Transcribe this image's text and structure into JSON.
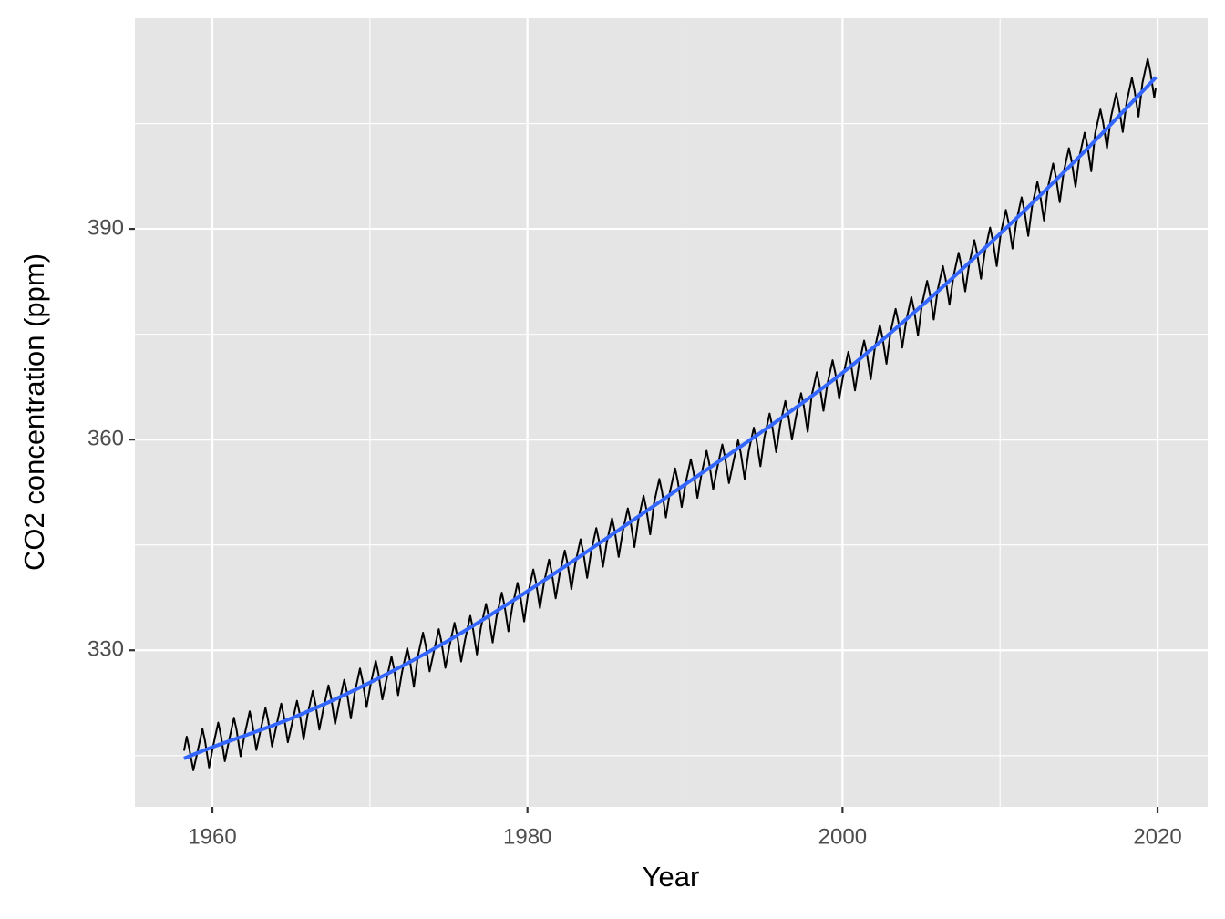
{
  "chart_data": {
    "type": "line",
    "x_label": "Year",
    "y_label": "CO2 concentration (ppm)",
    "xlim": [
      1955.08,
      2023.18
    ],
    "ylim": [
      307.7,
      420.0
    ],
    "xticks": [
      1960,
      1980,
      2000,
      2020
    ],
    "yticks": [
      330,
      360,
      390
    ],
    "x_minor_ticks": [
      1970,
      1990,
      2010
    ],
    "y_minor_ticks": [
      315,
      345,
      375,
      405
    ],
    "grid": true,
    "background": "#e5e5e5",
    "series": [
      {
        "color": "#000000",
        "smooth": false,
        "x": [
          1958.2,
          1958.37,
          1958.54,
          1958.79,
          1959.04,
          1959.37,
          1959.54,
          1959.79,
          1960.04,
          1960.37,
          1960.54,
          1960.79,
          1961.04,
          1961.37,
          1961.54,
          1961.79,
          1962.04,
          1962.37,
          1962.54,
          1962.79,
          1963.04,
          1963.37,
          1963.54,
          1963.79,
          1964.04,
          1964.37,
          1964.54,
          1964.79,
          1965.04,
          1965.37,
          1965.54,
          1965.79,
          1966.04,
          1966.37,
          1966.54,
          1966.79,
          1967.04,
          1967.37,
          1967.54,
          1967.79,
          1968.04,
          1968.37,
          1968.54,
          1968.79,
          1969.04,
          1969.37,
          1969.54,
          1969.79,
          1970.04,
          1970.37,
          1970.54,
          1970.79,
          1971.04,
          1971.37,
          1971.54,
          1971.79,
          1972.04,
          1972.37,
          1972.54,
          1972.79,
          1973.04,
          1973.37,
          1973.54,
          1973.79,
          1974.04,
          1974.37,
          1974.54,
          1974.79,
          1975.04,
          1975.37,
          1975.54,
          1975.79,
          1976.04,
          1976.37,
          1976.54,
          1976.79,
          1977.04,
          1977.37,
          1977.54,
          1977.79,
          1978.04,
          1978.37,
          1978.54,
          1978.79,
          1979.04,
          1979.37,
          1979.54,
          1979.79,
          1980.04,
          1980.37,
          1980.54,
          1980.79,
          1981.04,
          1981.37,
          1981.54,
          1981.79,
          1982.04,
          1982.37,
          1982.54,
          1982.79,
          1983.04,
          1983.37,
          1983.54,
          1983.79,
          1984.04,
          1984.37,
          1984.54,
          1984.79,
          1985.04,
          1985.37,
          1985.54,
          1985.79,
          1986.04,
          1986.37,
          1986.54,
          1986.79,
          1987.04,
          1987.37,
          1987.54,
          1987.79,
          1988.04,
          1988.37,
          1988.54,
          1988.79,
          1989.04,
          1989.37,
          1989.54,
          1989.79,
          1990.04,
          1990.37,
          1990.54,
          1990.79,
          1991.04,
          1991.37,
          1991.54,
          1991.79,
          1992.04,
          1992.37,
          1992.54,
          1992.79,
          1993.04,
          1993.37,
          1993.54,
          1993.79,
          1994.04,
          1994.37,
          1994.54,
          1994.79,
          1995.04,
          1995.37,
          1995.54,
          1995.79,
          1996.04,
          1996.37,
          1996.54,
          1996.79,
          1997.04,
          1997.37,
          1997.54,
          1997.79,
          1998.04,
          1998.37,
          1998.54,
          1998.79,
          1999.04,
          1999.37,
          1999.54,
          1999.79,
          2000.04,
          2000.37,
          2000.54,
          2000.79,
          2001.04,
          2001.37,
          2001.54,
          2001.79,
          2002.04,
          2002.37,
          2002.54,
          2002.79,
          2003.04,
          2003.37,
          2003.54,
          2003.79,
          2004.04,
          2004.37,
          2004.54,
          2004.79,
          2005.04,
          2005.37,
          2005.54,
          2005.79,
          2006.04,
          2006.37,
          2006.54,
          2006.79,
          2007.04,
          2007.37,
          2007.54,
          2007.79,
          2008.04,
          2008.37,
          2008.54,
          2008.79,
          2009.04,
          2009.37,
          2009.54,
          2009.79,
          2010.04,
          2010.37,
          2010.54,
          2010.79,
          2011.04,
          2011.37,
          2011.54,
          2011.79,
          2012.04,
          2012.37,
          2012.54,
          2012.79,
          2013.04,
          2013.37,
          2013.54,
          2013.79,
          2014.04,
          2014.37,
          2014.54,
          2014.79,
          2015.04,
          2015.37,
          2015.54,
          2015.79,
          2016.04,
          2016.37,
          2016.54,
          2016.79,
          2017.04,
          2017.37,
          2017.54,
          2017.79,
          2018.04,
          2018.37,
          2018.54,
          2018.79,
          2019.04,
          2019.37,
          2019.54,
          2019.79,
          2019.88
        ],
        "values": [
          315.7,
          317.7,
          315.9,
          312.9,
          315.4,
          318.8,
          317.0,
          313.3,
          316.3,
          319.7,
          317.9,
          314.2,
          317.0,
          320.4,
          318.6,
          314.9,
          317.9,
          321.3,
          319.5,
          315.8,
          318.4,
          321.8,
          320.0,
          316.3,
          319.0,
          322.4,
          320.6,
          316.9,
          319.4,
          322.8,
          321.0,
          317.3,
          320.8,
          324.2,
          322.4,
          318.7,
          321.6,
          325.0,
          323.2,
          319.5,
          322.4,
          325.8,
          324.0,
          320.3,
          324.0,
          327.4,
          325.6,
          321.9,
          325.1,
          328.5,
          326.7,
          323.0,
          325.7,
          329.1,
          327.3,
          323.6,
          326.9,
          330.3,
          328.5,
          324.8,
          329.1,
          332.5,
          330.7,
          327.0,
          329.6,
          333.0,
          331.2,
          327.5,
          330.5,
          333.9,
          332.1,
          328.4,
          331.5,
          334.9,
          333.1,
          329.4,
          333.2,
          336.6,
          334.8,
          331.1,
          334.8,
          338.2,
          336.4,
          332.7,
          336.2,
          339.6,
          337.8,
          334.1,
          338.1,
          341.5,
          339.7,
          336.0,
          339.5,
          342.9,
          341.1,
          337.4,
          340.8,
          344.2,
          342.4,
          338.7,
          342.4,
          345.8,
          344.0,
          340.3,
          344.0,
          347.4,
          345.6,
          341.9,
          345.4,
          348.8,
          347.0,
          343.3,
          346.8,
          350.2,
          348.4,
          344.7,
          348.6,
          352.0,
          350.2,
          346.5,
          351.0,
          354.4,
          352.6,
          348.9,
          352.5,
          355.9,
          354.1,
          350.4,
          353.8,
          357.2,
          355.4,
          351.7,
          355.0,
          358.4,
          356.6,
          352.9,
          355.9,
          359.3,
          357.5,
          353.8,
          356.5,
          359.9,
          358.1,
          354.4,
          358.3,
          361.7,
          359.9,
          356.2,
          360.3,
          363.7,
          361.9,
          358.2,
          362.1,
          365.5,
          363.7,
          360.0,
          363.2,
          366.6,
          364.8,
          361.1,
          366.2,
          369.6,
          367.8,
          364.1,
          367.9,
          371.3,
          369.5,
          365.8,
          369.1,
          372.5,
          370.7,
          367.0,
          370.7,
          374.1,
          372.3,
          368.6,
          372.9,
          376.3,
          374.5,
          370.8,
          375.2,
          378.6,
          376.8,
          373.1,
          376.9,
          380.3,
          378.5,
          374.8,
          379.2,
          382.6,
          380.8,
          377.1,
          381.3,
          384.7,
          382.9,
          379.2,
          383.2,
          386.6,
          384.8,
          381.1,
          385.0,
          388.4,
          386.6,
          382.9,
          386.8,
          390.2,
          388.4,
          384.7,
          389.3,
          392.7,
          390.9,
          387.2,
          391.1,
          394.5,
          392.7,
          389.0,
          393.3,
          396.7,
          394.9,
          391.2,
          395.9,
          399.3,
          397.5,
          393.8,
          398.1,
          401.5,
          399.7,
          396.0,
          400.3,
          403.7,
          401.9,
          398.2,
          403.6,
          407.0,
          405.2,
          401.5,
          405.9,
          409.3,
          407.5,
          403.8,
          408.1,
          411.5,
          409.7,
          406.0,
          410.8,
          414.2,
          412.4,
          408.7,
          410.0
        ]
      },
      {
        "color": "#3366ff",
        "smooth": true,
        "x": [
          1958.2,
          1960,
          1965,
          1970,
          1975,
          1980,
          1985,
          1990,
          1995,
          2000,
          2005,
          2010,
          2015,
          2019.9
        ],
        "values": [
          314.6,
          316.2,
          320.3,
          325.4,
          331.4,
          338.4,
          345.9,
          353.6,
          361.3,
          369.5,
          379.0,
          389.3,
          400.2,
          411.6
        ]
      }
    ]
  }
}
